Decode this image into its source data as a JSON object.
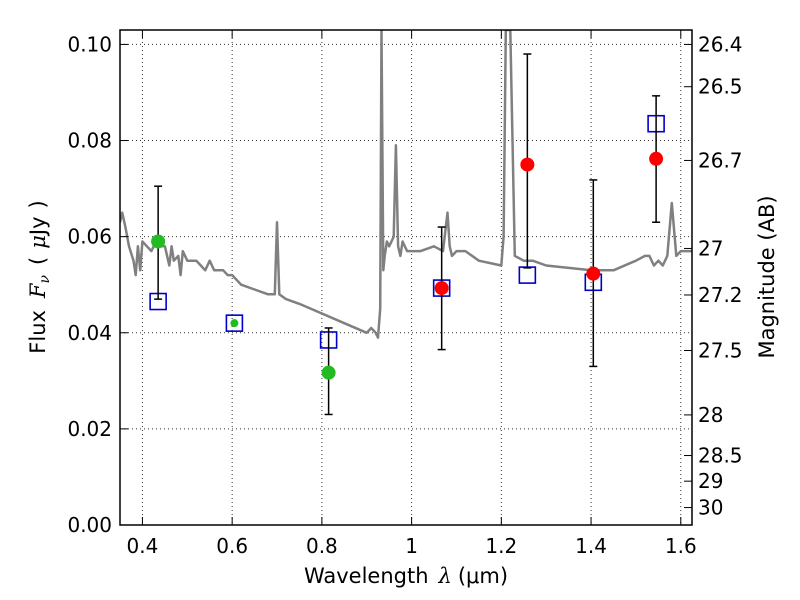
{
  "chart_data": {
    "type": "scatter",
    "title": "",
    "xlabel": "Wavelength  λ (μm)",
    "xlabel_parts": {
      "text": "Wavelength",
      "symbol": "λ",
      "unit": "(μm)"
    },
    "ylabel": "Flux  Fν  ( μJy )",
    "ylabel_parts": {
      "text": "Flux",
      "symbol": "F",
      "subscript": "ν",
      "unit_open": "(",
      "unit_mu": "μ",
      "unit_text": "Jy",
      "unit_close": ")"
    },
    "y2label": "Magnitude (AB)",
    "xlim": [
      0.35,
      1.625
    ],
    "ylim": [
      0.0,
      0.103
    ],
    "grid": true,
    "xticks": [
      {
        "value": 0.4,
        "label": "0.4"
      },
      {
        "value": 0.6,
        "label": "0.6"
      },
      {
        "value": 0.8,
        "label": "0.8"
      },
      {
        "value": 1.0,
        "label": "1"
      },
      {
        "value": 1.2,
        "label": "1.2"
      },
      {
        "value": 1.4,
        "label": "1.4"
      },
      {
        "value": 1.6,
        "label": "1.6"
      }
    ],
    "yticks": [
      {
        "value": 0.0,
        "label": "0.00"
      },
      {
        "value": 0.02,
        "label": "0.02"
      },
      {
        "value": 0.04,
        "label": "0.04"
      },
      {
        "value": 0.06,
        "label": "0.06"
      },
      {
        "value": 0.08,
        "label": "0.08"
      },
      {
        "value": 0.1,
        "label": "0.10"
      }
    ],
    "y2ticks": [
      {
        "mag": 26.4,
        "label": "26.4"
      },
      {
        "mag": 26.5,
        "label": "26.5"
      },
      {
        "mag": 26.7,
        "label": "26.7"
      },
      {
        "mag": 27.0,
        "label": "27"
      },
      {
        "mag": 27.2,
        "label": "27.2"
      },
      {
        "mag": 27.5,
        "label": "27.5"
      },
      {
        "mag": 28.0,
        "label": "28"
      },
      {
        "mag": 28.5,
        "label": "28.5"
      },
      {
        "mag": 29.0,
        "label": "29"
      },
      {
        "mag": 30.0,
        "label": "30"
      }
    ],
    "series": [
      {
        "name": "model-spectrum",
        "kind": "line",
        "color": "#808080",
        "x": [
          0.35,
          0.355,
          0.362,
          0.37,
          0.38,
          0.385,
          0.39,
          0.395,
          0.4,
          0.41,
          0.42,
          0.43,
          0.44,
          0.45,
          0.46,
          0.465,
          0.47,
          0.48,
          0.485,
          0.49,
          0.5,
          0.51,
          0.52,
          0.53,
          0.54,
          0.55,
          0.56,
          0.57,
          0.58,
          0.59,
          0.6,
          0.62,
          0.65,
          0.68,
          0.695,
          0.7,
          0.705,
          0.72,
          0.75,
          0.8,
          0.85,
          0.9,
          0.91,
          0.92,
          0.925,
          0.93,
          0.933,
          0.937,
          0.94,
          0.945,
          0.95,
          0.96,
          0.965,
          0.97,
          0.975,
          0.98,
          0.99,
          1.0,
          1.02,
          1.05,
          1.07,
          1.08,
          1.085,
          1.09,
          1.1,
          1.12,
          1.15,
          1.2,
          1.205,
          1.21,
          1.215,
          1.22,
          1.23,
          1.25,
          1.27,
          1.3,
          1.4,
          1.45,
          1.5,
          1.52,
          1.53,
          1.54,
          1.55,
          1.56,
          1.57,
          1.58,
          1.59,
          1.6,
          1.625
        ],
        "y": [
          0.063,
          0.065,
          0.062,
          0.058,
          0.055,
          0.052,
          0.058,
          0.053,
          0.059,
          0.058,
          0.057,
          0.059,
          0.058,
          0.058,
          0.054,
          0.058,
          0.055,
          0.056,
          0.052,
          0.057,
          0.055,
          0.055,
          0.055,
          0.054,
          0.053,
          0.055,
          0.053,
          0.053,
          0.053,
          0.052,
          0.052,
          0.05,
          0.049,
          0.048,
          0.048,
          0.063,
          0.048,
          0.047,
          0.046,
          0.044,
          0.042,
          0.04,
          0.041,
          0.04,
          0.039,
          0.045,
          0.103,
          0.053,
          0.056,
          0.059,
          0.058,
          0.06,
          0.079,
          0.058,
          0.056,
          0.059,
          0.057,
          0.057,
          0.057,
          0.058,
          0.057,
          0.065,
          0.058,
          0.056,
          0.057,
          0.057,
          0.055,
          0.054,
          0.06,
          0.103,
          0.103,
          0.103,
          0.056,
          0.055,
          0.055,
          0.054,
          0.053,
          0.053,
          0.055,
          0.056,
          0.056,
          0.054,
          0.055,
          0.054,
          0.056,
          0.067,
          0.056,
          0.057,
          0.057
        ]
      },
      {
        "name": "model-photometry",
        "kind": "open-square",
        "color": "#0000cc",
        "points": [
          {
            "x": 0.435,
            "y": 0.0465
          },
          {
            "x": 0.605,
            "y": 0.042
          },
          {
            "x": 0.815,
            "y": 0.0385
          },
          {
            "x": 1.067,
            "y": 0.0493
          },
          {
            "x": 1.258,
            "y": 0.052
          },
          {
            "x": 1.405,
            "y": 0.0505
          },
          {
            "x": 1.545,
            "y": 0.0835
          }
        ]
      },
      {
        "name": "observed-optical",
        "kind": "filled-circle",
        "color": "#22bb22",
        "points": [
          {
            "x": 0.435,
            "y": 0.059,
            "err_low": 0.047,
            "err_high": 0.0705
          },
          {
            "x": 0.605,
            "y": 0.042,
            "err_low": 0.042,
            "err_high": 0.042
          },
          {
            "x": 0.815,
            "y": 0.0317,
            "err_low": 0.023,
            "err_high": 0.041
          }
        ]
      },
      {
        "name": "observed-nir",
        "kind": "filled-circle",
        "color": "#ff0000",
        "points": [
          {
            "x": 1.067,
            "y": 0.0493,
            "err_low": 0.0365,
            "err_high": 0.062
          },
          {
            "x": 1.258,
            "y": 0.075,
            "err_low": 0.0535,
            "err_high": 0.098
          },
          {
            "x": 1.405,
            "y": 0.0523,
            "err_low": 0.033,
            "err_high": 0.0718
          },
          {
            "x": 1.545,
            "y": 0.0762,
            "err_low": 0.063,
            "err_high": 0.0893
          }
        ]
      }
    ]
  }
}
